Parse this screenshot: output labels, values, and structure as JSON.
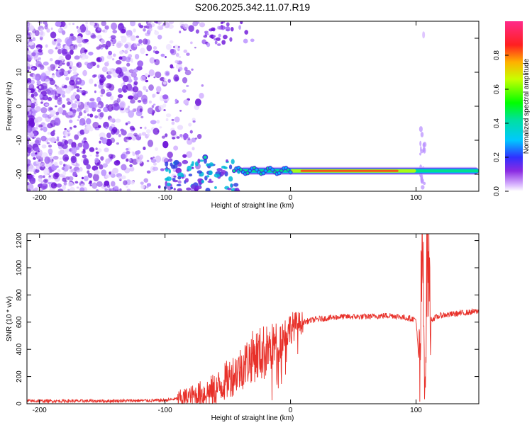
{
  "title": "S206.2025.342.11.07.R19",
  "chart_data": [
    {
      "type": "heatmap",
      "xlabel": "Height of straight line (km)",
      "ylabel": "Frequency (Hz)",
      "xlim": [
        -210,
        150
      ],
      "ylim": [
        -25,
        25
      ],
      "xticks": [
        -200,
        -100,
        0,
        100
      ],
      "yticks": [
        -20,
        -10,
        0,
        10,
        20
      ],
      "colorbar": {
        "label": "Normalized spectral amplitude",
        "range": [
          0,
          1
        ],
        "ticks": [
          "0.0",
          "0.2",
          "0.4",
          "0.6",
          "0.8"
        ]
      },
      "signal_band": {
        "frequency_hz": -19,
        "x_range": [
          -100,
          150
        ],
        "peak_x_range": [
          0,
          100
        ]
      },
      "noise_region_x": [
        -210,
        -80
      ]
    },
    {
      "type": "line",
      "xlabel": "Height of straight line (km)",
      "ylabel": "SNR (10 * v/v)",
      "xlim": [
        -210,
        150
      ],
      "ylim": [
        0,
        1250
      ],
      "xticks": [
        -200,
        -100,
        0,
        100
      ],
      "yticks": [
        0,
        200,
        400,
        600,
        800,
        1000,
        1200
      ],
      "color": "#e8312a",
      "series": [
        {
          "x": [
            -210,
            -150,
            -100,
            -80,
            -60,
            -50,
            -40,
            -30,
            -20,
            -10,
            0,
            10,
            20,
            40,
            60,
            80,
            100,
            103,
            105,
            107,
            109,
            112,
            120,
            150
          ],
          "y": [
            20,
            20,
            25,
            50,
            100,
            180,
            260,
            350,
            380,
            450,
            560,
            600,
            620,
            640,
            640,
            650,
            620,
            200,
            1250,
            50,
            1200,
            620,
            650,
            680
          ]
        }
      ]
    }
  ]
}
